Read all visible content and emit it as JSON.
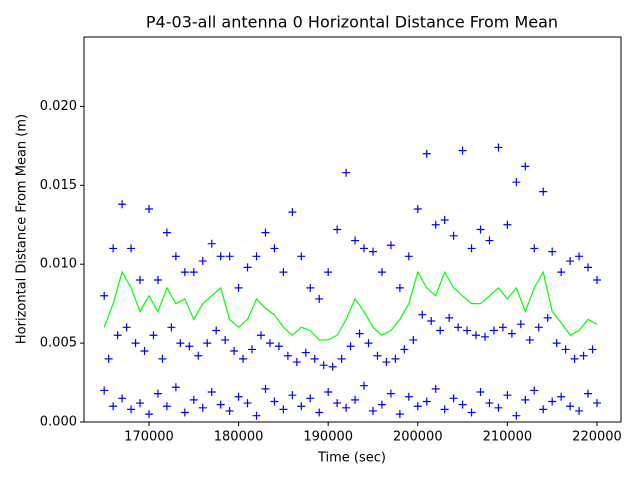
{
  "chart_data": {
    "type": "scatter",
    "title": "P4-03-all antenna 0 Horizontal Distance From Mean",
    "xlabel": "Time (sec)",
    "ylabel": "Horizontal Distance From Mean (m)",
    "xlim": [
      162746,
      222679
    ],
    "ylim": [
      0,
      0.0244
    ],
    "xticks": [
      170000,
      180000,
      190000,
      200000,
      210000,
      220000
    ],
    "yticks": [
      {
        "value": 0,
        "label": "0.000"
      },
      {
        "value": 0.005,
        "label": "0.005"
      },
      {
        "value": 0.01,
        "label": "0.010"
      },
      {
        "value": 0.015,
        "label": "0.015"
      },
      {
        "value": 0.02,
        "label": "0.020"
      }
    ],
    "series": [
      {
        "type": "scatter",
        "marker": "+",
        "color": "#0000ff",
        "x": [
          165000,
          166000,
          167000,
          168000,
          169000,
          170000,
          171000,
          172000,
          173000,
          174000,
          175000,
          176000,
          177000,
          178000,
          179000,
          180000,
          181000,
          182000,
          183000,
          184000,
          185000,
          186000,
          187000,
          188000,
          189000,
          190000,
          191000,
          192000,
          193000,
          194000,
          195000,
          196000,
          197000,
          198000,
          199000,
          200000,
          201000,
          202000,
          203000,
          204000,
          205000,
          206000,
          207000,
          208000,
          209000,
          210000,
          211000,
          212000,
          213000,
          214000,
          215000,
          216000,
          217000,
          218000,
          219000,
          220000,
          165500,
          166500,
          167500,
          168500,
          169500,
          170500,
          171500,
          172500,
          173500,
          174500,
          175500,
          176500,
          177500,
          178500,
          179500,
          180500,
          181500,
          182500,
          183500,
          184500,
          185500,
          186500,
          187500,
          188500,
          189500,
          190500,
          191500,
          192500,
          193500,
          194500,
          195500,
          196500,
          197500,
          198500,
          199500,
          200500,
          201500,
          202500,
          203500,
          204500,
          205500,
          206500,
          207500,
          208500,
          209500,
          210500,
          211500,
          212500,
          213500,
          214500,
          215500,
          216500,
          217500,
          218500,
          219500,
          165000,
          166000,
          167000,
          168000,
          169000,
          170000,
          171000,
          172000,
          173000,
          174000,
          175000,
          176000,
          177000,
          178000,
          179000,
          180000,
          181000,
          182000,
          183000,
          184000,
          185000,
          186000,
          187000,
          188000,
          189000,
          190000,
          191000,
          192000,
          193000,
          194000,
          195000,
          196000,
          197000,
          198000,
          199000,
          200000,
          201000,
          202000,
          203000,
          204000,
          205000,
          206000,
          207000,
          208000,
          209000,
          210000,
          211000,
          212000,
          213000,
          214000,
          215000,
          216000,
          217000,
          218000,
          219000,
          220000
        ],
        "values": [
          0.008,
          0.011,
          0.0138,
          0.011,
          0.009,
          0.0135,
          0.009,
          0.012,
          0.0105,
          0.0095,
          0.0095,
          0.0102,
          0.0113,
          0.0105,
          0.0105,
          0.0085,
          0.0098,
          0.0105,
          0.012,
          0.011,
          0.0095,
          0.0133,
          0.0105,
          0.0085,
          0.0078,
          0.0095,
          0.0122,
          0.0158,
          0.0115,
          0.011,
          0.0108,
          0.0095,
          0.0112,
          0.0085,
          0.0105,
          0.0135,
          0.017,
          0.0125,
          0.0128,
          0.0118,
          0.0172,
          0.011,
          0.0122,
          0.0115,
          0.0174,
          0.0125,
          0.0152,
          0.0162,
          0.011,
          0.0146,
          0.0108,
          0.0095,
          0.0102,
          0.0105,
          0.0098,
          0.009,
          0.004,
          0.0055,
          0.006,
          0.005,
          0.0045,
          0.0055,
          0.004,
          0.006,
          0.005,
          0.0048,
          0.0042,
          0.005,
          0.0058,
          0.0052,
          0.0045,
          0.004,
          0.0046,
          0.0055,
          0.005,
          0.0048,
          0.0042,
          0.0038,
          0.0044,
          0.004,
          0.0036,
          0.0035,
          0.004,
          0.0048,
          0.0056,
          0.005,
          0.0042,
          0.0038,
          0.004,
          0.0046,
          0.0052,
          0.0068,
          0.0064,
          0.0058,
          0.0066,
          0.006,
          0.0058,
          0.0055,
          0.0054,
          0.0058,
          0.006,
          0.0056,
          0.0062,
          0.0052,
          0.006,
          0.0066,
          0.005,
          0.0046,
          0.004,
          0.0042,
          0.0046,
          0.002,
          0.001,
          0.0015,
          0.0008,
          0.0012,
          0.0005,
          0.0018,
          0.001,
          0.0022,
          0.0006,
          0.0014,
          0.0009,
          0.0019,
          0.0011,
          0.0007,
          0.0016,
          0.0012,
          0.0004,
          0.0021,
          0.0013,
          0.0008,
          0.0017,
          0.001,
          0.0015,
          0.0006,
          0.0019,
          0.0012,
          0.0009,
          0.0014,
          0.0023,
          0.0007,
          0.0011,
          0.0018,
          0.0005,
          0.0016,
          0.001,
          0.0013,
          0.0021,
          0.0008,
          0.0015,
          0.0011,
          0.0006,
          0.0019,
          0.0012,
          0.0009,
          0.0017,
          0.0004,
          0.0014,
          0.002,
          0.0008,
          0.0013,
          0.0016,
          0.001,
          0.0007,
          0.0018,
          0.0012
        ]
      },
      {
        "type": "line",
        "color": "#00ff00",
        "x": [
          165000,
          166000,
          167000,
          168000,
          169000,
          170000,
          171000,
          172000,
          173000,
          174000,
          175000,
          176000,
          177000,
          178000,
          179000,
          180000,
          181000,
          182000,
          183000,
          184000,
          185000,
          186000,
          187000,
          188000,
          189000,
          190000,
          191000,
          192000,
          193000,
          194000,
          195000,
          196000,
          197000,
          198000,
          199000,
          200000,
          201000,
          202000,
          203000,
          204000,
          205000,
          206000,
          207000,
          208000,
          209000,
          210000,
          211000,
          212000,
          213000,
          214000,
          215000,
          216000,
          217000,
          218000,
          219000,
          220000
        ],
        "values": [
          0.006,
          0.0075,
          0.0095,
          0.0085,
          0.007,
          0.008,
          0.007,
          0.0085,
          0.0075,
          0.0078,
          0.0065,
          0.0075,
          0.008,
          0.0085,
          0.0065,
          0.006,
          0.0065,
          0.0078,
          0.0072,
          0.0068,
          0.006,
          0.0055,
          0.006,
          0.0058,
          0.0052,
          0.0052,
          0.0055,
          0.0065,
          0.0078,
          0.007,
          0.006,
          0.0055,
          0.0058,
          0.0065,
          0.0075,
          0.0095,
          0.0085,
          0.008,
          0.0095,
          0.0085,
          0.008,
          0.0075,
          0.0075,
          0.008,
          0.0085,
          0.0078,
          0.0085,
          0.007,
          0.0085,
          0.0095,
          0.007,
          0.0063,
          0.0055,
          0.0058,
          0.0065,
          0.0062
        ]
      }
    ]
  }
}
